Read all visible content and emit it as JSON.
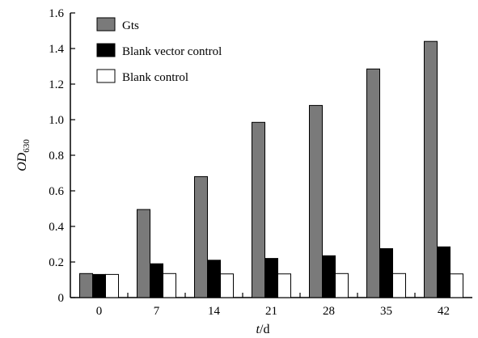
{
  "chart_data": {
    "type": "bar",
    "title": "",
    "xlabel_italic": "t",
    "xlabel_rest": "/d",
    "ylabel_main": "OD",
    "ylabel_sub": "630",
    "categories": [
      "0",
      "7",
      "14",
      "21",
      "28",
      "35",
      "42"
    ],
    "ylim": [
      0,
      1.6
    ],
    "yticks": [
      "0",
      "0.2",
      "0.4",
      "0.6",
      "0.8",
      "1.0",
      "1.2",
      "1.4",
      "1.6"
    ],
    "yticks_values": [
      0,
      0.2,
      0.4,
      0.6,
      0.8,
      1.0,
      1.2,
      1.4,
      1.6
    ],
    "grid": false,
    "legend_position": "top-left",
    "series": [
      {
        "name": "Gts",
        "color": "#7a7a7a",
        "values": [
          0.135,
          0.495,
          0.68,
          0.985,
          1.08,
          1.285,
          1.44
        ]
      },
      {
        "name": "Blank vector control",
        "color": "#000000",
        "values": [
          0.13,
          0.19,
          0.21,
          0.22,
          0.235,
          0.275,
          0.285
        ]
      },
      {
        "name": "Blank control",
        "color": "#ffffff",
        "values": [
          0.13,
          0.135,
          0.133,
          0.133,
          0.135,
          0.135,
          0.133
        ]
      }
    ]
  }
}
